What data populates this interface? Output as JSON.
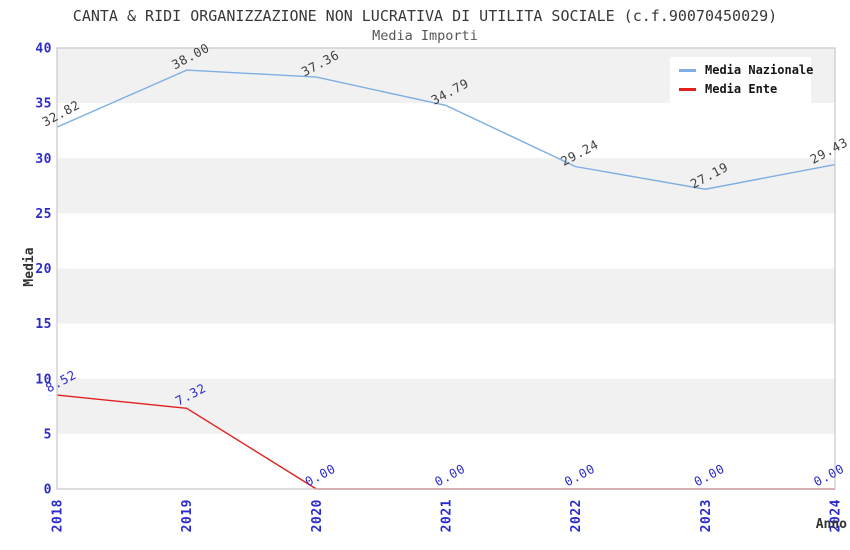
{
  "header": {
    "title": "CANTA & RIDI ORGANIZZAZIONE NON LUCRATIVA DI UTILITA SOCIALE (c.f.90070450029)",
    "subtitle": "Media Importi"
  },
  "chart_data": {
    "type": "line",
    "x": [
      "2018",
      "2019",
      "2020",
      "2021",
      "2022",
      "2023",
      "2024"
    ],
    "series": [
      {
        "name": "Media Nazionale",
        "color": "#7dafe3",
        "label_color": "#3f3f3f",
        "values": [
          32.82,
          38.0,
          37.36,
          34.79,
          29.24,
          27.19,
          29.43
        ],
        "labels": [
          "32.82",
          "38.00",
          "37.36",
          "34.79",
          "29.24",
          "27.19",
          "29.43"
        ]
      },
      {
        "name": "Media Ente",
        "color": "#e32020",
        "label_color": "#2b2bcd",
        "values": [
          8.52,
          7.32,
          0,
          0,
          0,
          0,
          0
        ],
        "labels": [
          "8.52",
          "7.32",
          "0.00",
          "0.00",
          "0.00",
          "0.00",
          "0.00"
        ]
      }
    ],
    "xlabel": "Anno",
    "ylabel": "Media",
    "ylim": [
      0,
      40
    ],
    "yticks": [
      0,
      5,
      10,
      15,
      20,
      25,
      30,
      35,
      40
    ],
    "grid": "alternating-bands",
    "legend_position": "top-right",
    "colors": {
      "band": "#f1f1f1",
      "plot_border": "#c9c9c9",
      "tick_labels": "#2b2bcd",
      "title_text": "#383838",
      "subtitle_text": "#565656"
    }
  }
}
